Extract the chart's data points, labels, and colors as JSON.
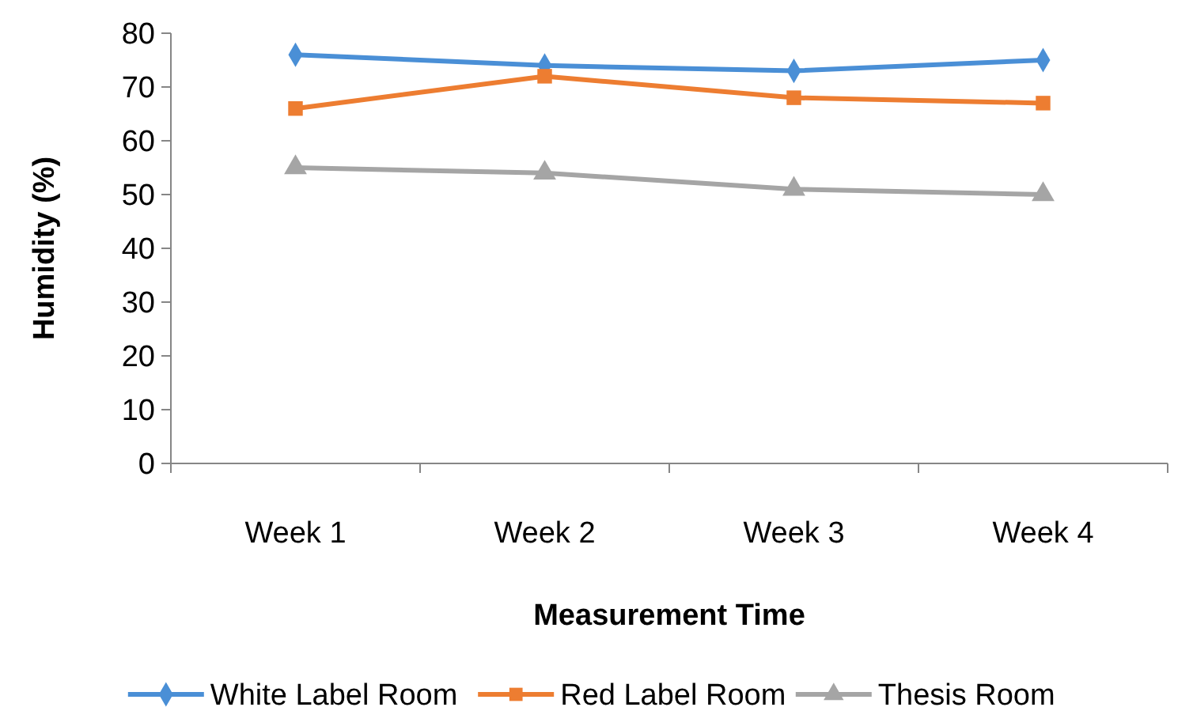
{
  "chart_data": {
    "type": "line",
    "xlabel": "Measurement Time",
    "ylabel": "Humidity (%)",
    "categories": [
      "Week 1",
      "Week 2",
      "Week 3",
      "Week 4"
    ],
    "series": [
      {
        "name": "White Label Room",
        "color": "#4a8fd6",
        "values": [
          76,
          74,
          73,
          75
        ],
        "marker": "diamond"
      },
      {
        "name": "Red Label Room",
        "color": "#ed7d31",
        "values": [
          66,
          72,
          68,
          67
        ],
        "marker": "square"
      },
      {
        "name": "Thesis Room",
        "color": "#a5a5a5",
        "values": [
          55,
          54,
          51,
          50
        ],
        "marker": "triangle"
      }
    ],
    "ylim": [
      0,
      80
    ],
    "yticks": [
      0,
      10,
      20,
      30,
      40,
      50,
      60,
      70,
      80
    ],
    "grid": false,
    "legend": "bottom",
    "line_style": "solid"
  }
}
